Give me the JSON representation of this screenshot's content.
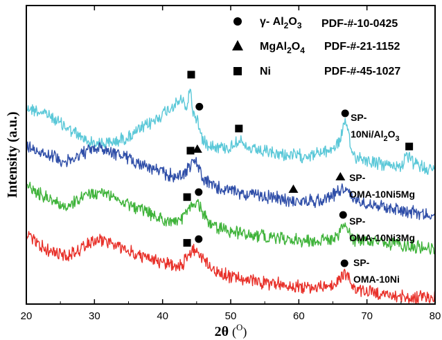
{
  "chart_data": {
    "type": "line",
    "xlabel": "2θ (°)",
    "xlabel_main": "2θ",
    "xlabel_unit": "O",
    "ylabel": "Intensity (a.u.)",
    "xlim": [
      20,
      80
    ],
    "xticks": [
      "20",
      "30",
      "40",
      "50",
      "60",
      "70",
      "80"
    ],
    "y_tick_labels_shown": false,
    "grid": false,
    "legend": {
      "placement": "top-right",
      "entries": [
        {
          "marker": "circle",
          "phase": "γ- Al2O3",
          "phase_parts": [
            "γ- Al",
            "2",
            "O",
            "3"
          ],
          "pdf": "PDF-#-10-0425"
        },
        {
          "marker": "triangle",
          "phase": "MgAl2O4",
          "phase_parts": [
            "MgAl",
            "2",
            "O",
            "4"
          ],
          "pdf": "PDF-#-21-1152"
        },
        {
          "marker": "square",
          "phase": "Ni",
          "phase_parts": [
            "Ni"
          ],
          "pdf": "PDF-#-45-1027"
        }
      ]
    },
    "series": [
      {
        "name": "SP-10Ni/Al2O3",
        "label_lines": [
          "SP-",
          "10Ni/Al2O3"
        ],
        "color": "#5bc8d8",
        "points": [
          [
            20,
            155
          ],
          [
            23,
            165
          ],
          [
            26,
            185
          ],
          [
            29,
            205
          ],
          [
            32,
            208
          ],
          [
            35,
            198
          ],
          [
            38,
            180
          ],
          [
            40,
            165
          ],
          [
            42,
            150
          ],
          [
            43,
            145
          ],
          [
            43.6,
            160
          ],
          [
            44,
            122
          ],
          [
            44.4,
            160
          ],
          [
            45,
            170
          ],
          [
            45.5,
            190
          ],
          [
            46,
            205
          ],
          [
            48,
            212
          ],
          [
            50,
            214
          ],
          [
            50.8,
            205
          ],
          [
            51.2,
            200
          ],
          [
            51.6,
            206
          ],
          [
            52,
            215
          ],
          [
            56,
            222
          ],
          [
            60,
            226
          ],
          [
            63,
            222
          ],
          [
            65,
            215
          ],
          [
            66,
            205
          ],
          [
            66.6,
            178
          ],
          [
            67,
            182
          ],
          [
            67.6,
            212
          ],
          [
            68,
            225
          ],
          [
            72,
            238
          ],
          [
            75,
            240
          ],
          [
            76,
            226
          ],
          [
            77,
            238
          ],
          [
            80,
            246
          ]
        ],
        "markers": [
          {
            "shape": "square",
            "x": 44.2
          },
          {
            "shape": "circle",
            "x": 45.4
          },
          {
            "shape": "square",
            "x": 51.2
          },
          {
            "shape": "circle",
            "x": 66.8
          },
          {
            "shape": "square",
            "x": 76.2
          }
        ]
      },
      {
        "name": "SP-OMA-10Ni5Mg",
        "label_lines": [
          "SP-",
          "OMA-10Ni5Mg"
        ],
        "color": "#2f4ea8",
        "points": [
          [
            20,
            212
          ],
          [
            23,
            222
          ],
          [
            26,
            235
          ],
          [
            29,
            218
          ],
          [
            31,
            214
          ],
          [
            34,
            225
          ],
          [
            37,
            238
          ],
          [
            40,
            250
          ],
          [
            42,
            256
          ],
          [
            43,
            252
          ],
          [
            44,
            240
          ],
          [
            44.6,
            232
          ],
          [
            45.2,
            240
          ],
          [
            46,
            260
          ],
          [
            48,
            272
          ],
          [
            52,
            280
          ],
          [
            56,
            286
          ],
          [
            60,
            292
          ],
          [
            63,
            290
          ],
          [
            65,
            282
          ],
          [
            66.4,
            272
          ],
          [
            67,
            275
          ],
          [
            68,
            288
          ],
          [
            72,
            298
          ],
          [
            76,
            305
          ],
          [
            80,
            312
          ]
        ],
        "markers": [
          {
            "shape": "square",
            "x": 44.1
          },
          {
            "shape": "triangle",
            "x": 45.1
          },
          {
            "shape": "triangle",
            "x": 59.2
          },
          {
            "shape": "triangle",
            "x": 66.1
          }
        ]
      },
      {
        "name": "SP-OMA-10Ni3Mg",
        "label_lines": [
          "SP-",
          "OMA-10Ni3Mg"
        ],
        "color": "#3fb33a",
        "points": [
          [
            20,
            270
          ],
          [
            23,
            285
          ],
          [
            26,
            300
          ],
          [
            29,
            282
          ],
          [
            31,
            278
          ],
          [
            34,
            290
          ],
          [
            37,
            305
          ],
          [
            40,
            318
          ],
          [
            42,
            322
          ],
          [
            43,
            316
          ],
          [
            44,
            300
          ],
          [
            45,
            292
          ],
          [
            45.8,
            305
          ],
          [
            47,
            325
          ],
          [
            50,
            335
          ],
          [
            55,
            342
          ],
          [
            60,
            348
          ],
          [
            63,
            348
          ],
          [
            65,
            345
          ],
          [
            66,
            340
          ],
          [
            66.5,
            325
          ],
          [
            67,
            332
          ],
          [
            68,
            346
          ],
          [
            72,
            352
          ],
          [
            76,
            356
          ],
          [
            80,
            360
          ]
        ],
        "markers": [
          {
            "shape": "square",
            "x": 43.6
          },
          {
            "shape": "circle",
            "x": 45.3
          },
          {
            "shape": "circle",
            "x": 66.5
          }
        ]
      },
      {
        "name": "SP-OMA-10Ni",
        "label_lines": [
          "SP-",
          "OMA-10Ni"
        ],
        "color": "#e8312a",
        "points": [
          [
            20,
            340
          ],
          [
            23,
            362
          ],
          [
            26,
            372
          ],
          [
            29,
            352
          ],
          [
            31,
            346
          ],
          [
            34,
            360
          ],
          [
            37,
            372
          ],
          [
            40,
            380
          ],
          [
            42,
            385
          ],
          [
            43,
            382
          ],
          [
            44,
            366
          ],
          [
            45,
            360
          ],
          [
            46,
            375
          ],
          [
            48,
            395
          ],
          [
            52,
            405
          ],
          [
            56,
            410
          ],
          [
            60,
            415
          ],
          [
            63,
            416
          ],
          [
            65,
            413
          ],
          [
            66,
            405
          ],
          [
            66.7,
            395
          ],
          [
            67.5,
            405
          ],
          [
            68,
            418
          ],
          [
            72,
            426
          ],
          [
            76,
            430
          ],
          [
            80,
            432
          ]
        ],
        "markers": [
          {
            "shape": "square",
            "x": 43.6
          },
          {
            "shape": "circle",
            "x": 45.3
          },
          {
            "shape": "circle",
            "x": 66.7
          }
        ]
      }
    ]
  }
}
